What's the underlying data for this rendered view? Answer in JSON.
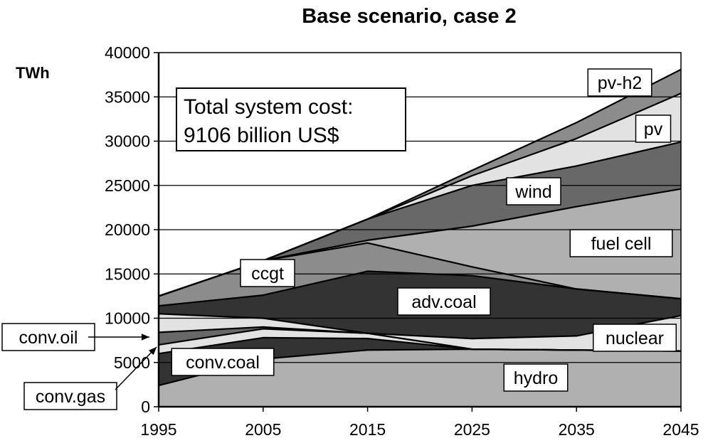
{
  "chart_data": {
    "type": "area",
    "title": "Base scenario, case 2",
    "ylabel": "TWh",
    "xlabel": "",
    "x": [
      1995,
      2005,
      2015,
      2025,
      2035,
      2045
    ],
    "xticks": [
      "1995",
      "2005",
      "2015",
      "2025",
      "2035",
      "2045"
    ],
    "ylim": [
      0,
      40000
    ],
    "yticks": [
      "0",
      "5000",
      "10000",
      "15000",
      "20000",
      "25000",
      "30000",
      "35000",
      "40000"
    ],
    "grid": "horizontal",
    "stacked": true,
    "series": [
      {
        "name": "hydro",
        "values": [
          2400,
          5400,
          6400,
          6500,
          6400,
          6300
        ]
      },
      {
        "name": "conv.coal",
        "values": [
          3600,
          2400,
          1300,
          0,
          0,
          0
        ]
      },
      {
        "name": "conv.gas",
        "values": [
          1000,
          1000,
          600,
          0,
          0,
          0
        ]
      },
      {
        "name": "conv.oil",
        "values": [
          1400,
          200,
          0,
          0,
          0,
          0
        ]
      },
      {
        "name": "nuclear",
        "values": [
          2100,
          1000,
          0,
          1200,
          1600,
          4000
        ]
      },
      {
        "name": "adv.coal",
        "values": [
          900,
          2600,
          7000,
          7100,
          5300,
          1900
        ]
      },
      {
        "name": "ccgt",
        "values": [
          1100,
          3900,
          3200,
          1000,
          0,
          0
        ]
      },
      {
        "name": "fuel cell",
        "values": [
          0,
          0,
          300,
          4600,
          9300,
          12400
        ]
      },
      {
        "name": "wind",
        "values": [
          0,
          0,
          2400,
          4600,
          4600,
          5300
        ]
      },
      {
        "name": "pv",
        "values": [
          0,
          0,
          0,
          1100,
          3100,
          5500
        ]
      },
      {
        "name": "pv-h2",
        "values": [
          0,
          0,
          0,
          600,
          1800,
          2700
        ]
      }
    ],
    "annotation": {
      "line1": "Total system cost:",
      "line2": "9106 billion US$"
    },
    "colors": {
      "hydro": "#b0b0b0",
      "conv.coal": "#333333",
      "conv.gas": "#e2e2e2",
      "conv.oil": "#686868",
      "nuclear": "#e2e2e2",
      "adv.coal": "#333333",
      "ccgt": "#8c8c8c",
      "fuel cell": "#b0b0b0",
      "wind": "#686868",
      "pv": "#e2e2e2",
      "pv-h2": "#8c8c8c"
    }
  }
}
